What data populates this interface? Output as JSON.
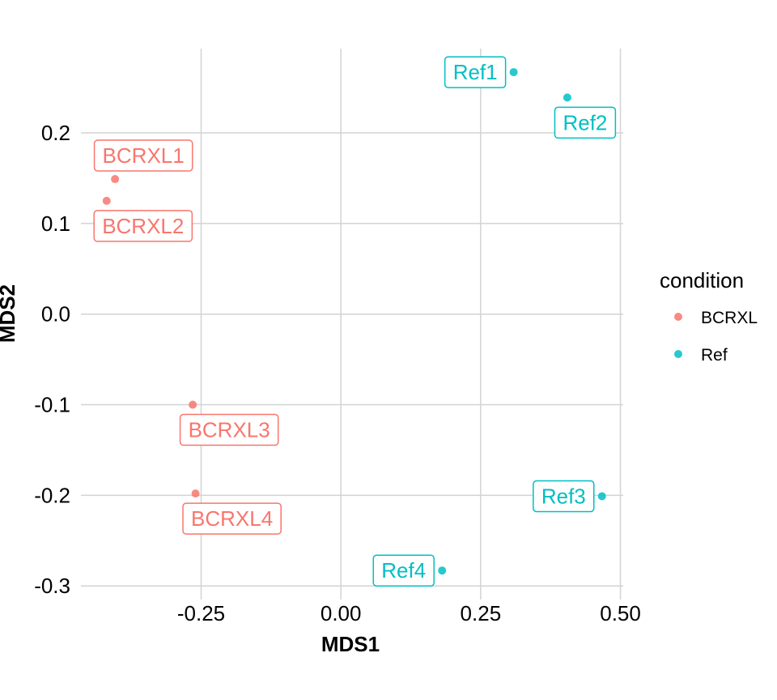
{
  "chart_data": {
    "type": "scatter",
    "xlabel": "MDS1",
    "ylabel": "MDS2",
    "xlim": [
      -0.465,
      0.505
    ],
    "ylim": [
      -0.315,
      0.293
    ],
    "x_ticks": [
      -0.25,
      0.0,
      0.25,
      0.5
    ],
    "x_tick_labels": [
      "-0.25",
      "0.00",
      "0.25",
      "0.50"
    ],
    "y_ticks": [
      -0.3,
      -0.2,
      -0.1,
      0.0,
      0.1,
      0.2
    ],
    "y_tick_labels": [
      "-0.3",
      "-0.2",
      "-0.1",
      "0.0",
      "0.1",
      "0.2"
    ],
    "grid": true,
    "legend": {
      "title": "condition",
      "placement": "right",
      "entries": [
        {
          "name": "BCRXL",
          "color": "#F8766D"
        },
        {
          "name": "Ref",
          "color": "#00BFC4"
        }
      ]
    },
    "points": [
      {
        "label": "BCRXL1",
        "condition": "BCRXL",
        "x": -0.404,
        "y": 0.149,
        "label_pos": "above"
      },
      {
        "label": "BCRXL2",
        "condition": "BCRXL",
        "x": -0.419,
        "y": 0.125,
        "label_pos": "below"
      },
      {
        "label": "BCRXL3",
        "condition": "BCRXL",
        "x": -0.265,
        "y": -0.1,
        "label_pos": "below"
      },
      {
        "label": "BCRXL4",
        "condition": "BCRXL",
        "x": -0.26,
        "y": -0.198,
        "label_pos": "below"
      },
      {
        "label": "Ref1",
        "condition": "Ref",
        "x": 0.309,
        "y": 0.267,
        "label_pos": "left"
      },
      {
        "label": "Ref2",
        "condition": "Ref",
        "x": 0.405,
        "y": 0.239,
        "label_pos": "below"
      },
      {
        "label": "Ref3",
        "condition": "Ref",
        "x": 0.467,
        "y": -0.201,
        "label_pos": "left"
      },
      {
        "label": "Ref4",
        "condition": "Ref",
        "x": 0.181,
        "y": -0.283,
        "label_pos": "left"
      }
    ]
  }
}
